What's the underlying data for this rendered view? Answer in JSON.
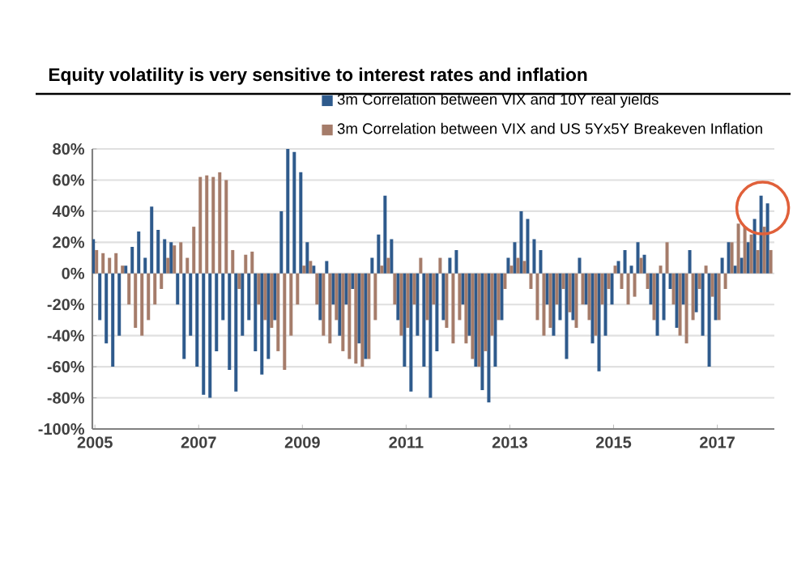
{
  "chart_data": {
    "type": "bar",
    "title": "Equity volatility is very sensitive to interest rates and inflation",
    "x": [
      2005.0,
      2005.125,
      2005.25,
      2005.375,
      2005.5,
      2005.625,
      2005.75,
      2005.875,
      2006.0,
      2006.125,
      2006.25,
      2006.375,
      2006.5,
      2006.625,
      2006.75,
      2006.875,
      2007.0,
      2007.125,
      2007.25,
      2007.375,
      2007.5,
      2007.625,
      2007.75,
      2007.875,
      2008.0,
      2008.125,
      2008.25,
      2008.375,
      2008.5,
      2008.625,
      2008.75,
      2008.875,
      2009.0,
      2009.125,
      2009.25,
      2009.375,
      2009.5,
      2009.625,
      2009.75,
      2009.875,
      2010.0,
      2010.125,
      2010.25,
      2010.375,
      2010.5,
      2010.625,
      2010.75,
      2010.875,
      2011.0,
      2011.125,
      2011.25,
      2011.375,
      2011.5,
      2011.625,
      2011.75,
      2011.875,
      2012.0,
      2012.125,
      2012.25,
      2012.375,
      2012.5,
      2012.625,
      2012.75,
      2012.875,
      2013.0,
      2013.125,
      2013.25,
      2013.375,
      2013.5,
      2013.625,
      2013.75,
      2013.875,
      2014.0,
      2014.125,
      2014.25,
      2014.375,
      2014.5,
      2014.625,
      2014.75,
      2014.875,
      2015.0,
      2015.125,
      2015.25,
      2015.375,
      2015.5,
      2015.625,
      2015.75,
      2015.875,
      2016.0,
      2016.125,
      2016.25,
      2016.375,
      2016.5,
      2016.625,
      2016.75,
      2016.875,
      2017.0,
      2017.125,
      2017.25,
      2017.375,
      2017.5,
      2017.625,
      2017.75,
      2017.875,
      2018.0
    ],
    "series": [
      {
        "name": "3m Correlation between VIX and 10Y real yields",
        "color": "#2e5a8c",
        "values": [
          22,
          -30,
          -45,
          -60,
          -40,
          5,
          17,
          27,
          10,
          43,
          28,
          22,
          20,
          -20,
          -55,
          -40,
          -60,
          -78,
          -80,
          -50,
          -30,
          -62,
          -76,
          -40,
          -30,
          -50,
          -65,
          -55,
          -30,
          40,
          80,
          78,
          65,
          20,
          5,
          -30,
          8,
          -20,
          -40,
          -20,
          -10,
          -45,
          -55,
          10,
          25,
          50,
          22,
          -30,
          -60,
          -76,
          -40,
          -60,
          -80,
          -50,
          -30,
          10,
          15,
          -20,
          -40,
          -60,
          -75,
          -83,
          -60,
          -30,
          10,
          20,
          40,
          35,
          22,
          15,
          -20,
          -40,
          -30,
          -55,
          -30,
          10,
          -20,
          -45,
          -63,
          -40,
          -20,
          8,
          15,
          5,
          20,
          12,
          -20,
          -40,
          -30,
          -10,
          -35,
          -20,
          15,
          -25,
          -40,
          -60,
          -30,
          10,
          20,
          5,
          10,
          20,
          35,
          50,
          45
        ]
      },
      {
        "name": "3m Correlation between VIX and US 5Yx5Y Breakeven Inflation",
        "color": "#a57c6a",
        "values": [
          15,
          13,
          10,
          13,
          5,
          -20,
          -35,
          -40,
          -30,
          -20,
          -10,
          10,
          18,
          20,
          10,
          30,
          62,
          63,
          62,
          65,
          60,
          15,
          -10,
          12,
          14,
          -20,
          -30,
          -35,
          -50,
          -62,
          -40,
          -20,
          5,
          8,
          -20,
          -40,
          -45,
          -30,
          -50,
          -55,
          -58,
          -60,
          -55,
          -30,
          5,
          10,
          -20,
          -40,
          -35,
          -20,
          10,
          -30,
          -20,
          10,
          -35,
          -45,
          -30,
          -45,
          -55,
          -60,
          -50,
          -40,
          -30,
          -10,
          5,
          10,
          8,
          -10,
          -30,
          -40,
          -35,
          -20,
          -10,
          -25,
          -35,
          -20,
          -30,
          -40,
          -20,
          -10,
          5,
          -10,
          -20,
          -15,
          10,
          -10,
          -30,
          5,
          20,
          -20,
          -40,
          -45,
          -30,
          -10,
          5,
          -15,
          -30,
          -10,
          20,
          32,
          30,
          25,
          15,
          30,
          15
        ]
      }
    ],
    "xlim": [
      2004.95,
      2018.1
    ],
    "xticks": [
      2005,
      2007,
      2009,
      2011,
      2013,
      2015,
      2017
    ],
    "ylim": [
      -100,
      80
    ],
    "yticks": [
      {
        "value": -100,
        "label": "-100%"
      },
      {
        "value": -80,
        "label": "-80%"
      },
      {
        "value": -60,
        "label": "-60%"
      },
      {
        "value": -40,
        "label": "-40%"
      },
      {
        "value": -20,
        "label": "-20%"
      },
      {
        "value": 0,
        "label": "0%"
      },
      {
        "value": 20,
        "label": "20%"
      },
      {
        "value": 40,
        "label": "40%"
      },
      {
        "value": 60,
        "label": "60%"
      },
      {
        "value": 80,
        "label": "80%"
      }
    ],
    "grid": "y",
    "legend": "top right"
  }
}
